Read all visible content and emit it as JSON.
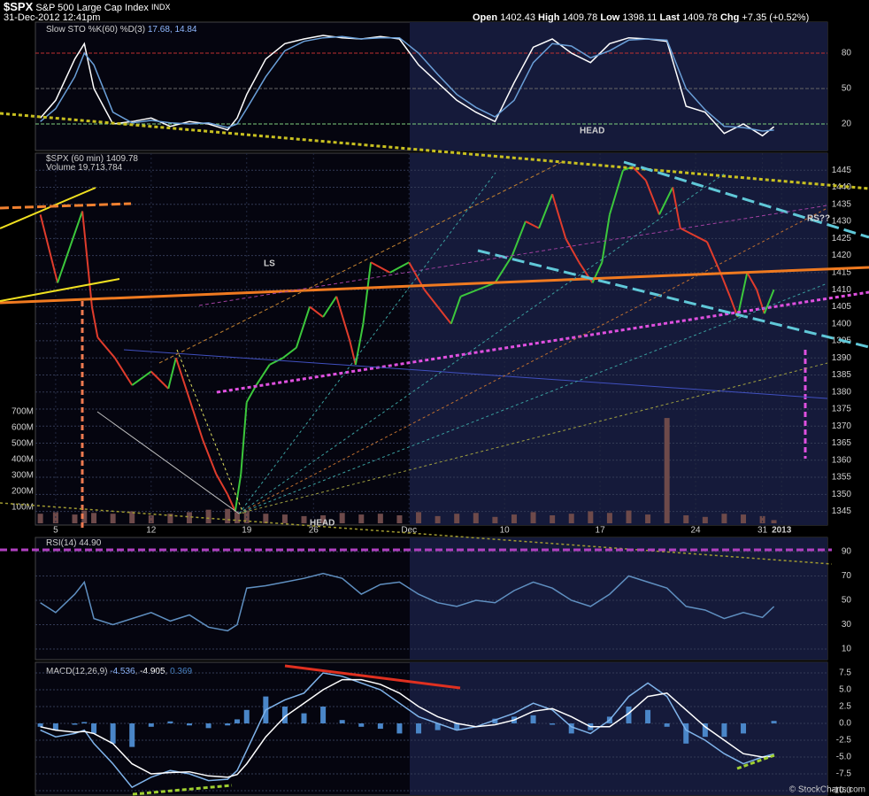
{
  "header": {
    "symbol": "$SPX",
    "name": "S&P 500 Large Cap Index",
    "exchange": "INDX",
    "datetime": "31-Dec-2012 12:41pm",
    "quote": [
      {
        "label": "Open",
        "value": "1402.43"
      },
      {
        "label": "High",
        "value": "1409.78"
      },
      {
        "label": "Low",
        "value": "1398.11"
      },
      {
        "label": "Last",
        "value": "1409.78"
      },
      {
        "label": "Chg",
        "value": "+7.35 (+0.52%)"
      }
    ],
    "copyright": "© StockCharts.com"
  },
  "chart_data": [
    {
      "type": "line",
      "title": "Slow STO %K(60) %D(3)",
      "values_label": "17.68, 14.84",
      "xlim": [
        -1.06,
        40.4
      ],
      "ylim": [
        -2.5,
        106.25
      ],
      "yticks": [
        20,
        50,
        80
      ],
      "grid_colors": [
        "#7fd07f",
        "#666666",
        "#c03030"
      ],
      "x": [
        -0.8,
        0,
        1,
        1.5,
        2,
        3,
        4,
        5,
        6,
        7,
        8,
        9,
        9.5,
        10,
        11,
        12,
        13,
        14,
        15,
        16,
        17,
        18,
        19,
        20,
        21,
        22,
        23,
        24,
        25,
        26,
        27,
        28,
        29,
        30,
        31,
        32,
        33,
        34,
        35,
        36,
        37,
        37.6
      ],
      "series": [
        {
          "color": "#ffffff",
          "values": [
            25,
            40,
            75,
            88,
            50,
            20,
            22,
            25,
            18,
            22,
            20,
            15,
            25,
            45,
            75,
            88,
            92,
            95,
            93,
            92,
            94,
            92,
            70,
            55,
            40,
            30,
            22,
            55,
            85,
            92,
            80,
            72,
            88,
            93,
            92,
            90,
            35,
            30,
            12,
            20,
            10,
            17.68
          ]
        },
        {
          "color": "#6a9fd8",
          "values": [
            22,
            33,
            60,
            80,
            70,
            30,
            21,
            23,
            21,
            20,
            21,
            17,
            20,
            33,
            60,
            82,
            90,
            93,
            94,
            92,
            93,
            93,
            80,
            62,
            45,
            34,
            26,
            40,
            72,
            88,
            86,
            76,
            82,
            91,
            92,
            91,
            50,
            32,
            18,
            17,
            14,
            14.84
          ]
        }
      ],
      "annotations": [
        {
          "text": "HEAD"
        }
      ]
    },
    {
      "type": "price",
      "title": "$SPX (60 min)",
      "title_value": "1409.78",
      "xlim": [
        -1.06,
        40.4
      ],
      "ylim": [
        1341,
        1450
      ],
      "yticks": [
        1345,
        1350,
        1355,
        1360,
        1365,
        1370,
        1375,
        1380,
        1385,
        1390,
        1395,
        1400,
        1405,
        1410,
        1415,
        1420,
        1425,
        1430,
        1435,
        1440,
        1445
      ],
      "xticks": [
        {
          "value": 0,
          "label": "5"
        },
        {
          "value": 5,
          "label": "12"
        },
        {
          "value": 10,
          "label": "19"
        },
        {
          "value": 13.5,
          "label": "26"
        },
        {
          "value": 18.5,
          "label": "Dec"
        },
        {
          "value": 23.5,
          "label": "10"
        },
        {
          "value": 28.5,
          "label": "17"
        },
        {
          "value": 33.5,
          "label": "24"
        },
        {
          "value": 37,
          "label": "31"
        },
        {
          "value": 38,
          "label": "2013"
        }
      ],
      "up_color": "#3cc83c",
      "down_color": "#e03c2c",
      "x": [
        -0.8,
        0.1,
        1.4,
        1.9,
        2.2,
        3.1,
        4.0,
        5.0,
        5.9,
        6.3,
        7.0,
        7.7,
        8.4,
        9.0,
        9.4,
        9.7,
        10.0,
        10.5,
        11.2,
        11.9,
        12.6,
        13.3,
        14.0,
        14.7,
        15.4,
        15.7,
        16.1,
        16.5,
        17.5,
        18.5,
        19.3,
        20.0,
        20.7,
        21.2,
        22.1,
        23.0,
        23.9,
        24.6,
        25.3,
        26.0,
        26.7,
        27.4,
        28.1,
        28.6,
        29.0,
        29.7,
        30.2,
        30.9,
        31.6,
        32.3,
        32.7,
        33.4,
        34.1,
        34.8,
        35.3,
        35.7,
        36.2,
        36.7,
        37.1,
        37.6
      ],
      "values": [
        1432,
        1412,
        1433,
        1405,
        1396,
        1390,
        1382,
        1386,
        1381,
        1390,
        1378,
        1366,
        1356,
        1350,
        1345,
        1356,
        1377,
        1382,
        1388,
        1390,
        1393,
        1405,
        1402,
        1408,
        1395,
        1388,
        1400,
        1418,
        1415,
        1418,
        1410,
        1405,
        1400,
        1408,
        1410,
        1412,
        1420,
        1430,
        1428,
        1438,
        1425,
        1418,
        1412,
        1418,
        1432,
        1445,
        1446,
        1442,
        1432,
        1440,
        1428,
        1426,
        1424,
        1415,
        1408,
        1402,
        1415,
        1410,
        1403,
        1410
      ],
      "volume": {
        "name": "Volume",
        "value_label": "19,713,784",
        "color": "#6e4a4a",
        "axis": "y2",
        "x": [
          -0.8,
          0,
          1,
          1.5,
          2,
          3,
          4,
          5,
          6,
          7,
          8,
          9,
          9.5,
          10,
          11,
          12,
          13,
          14,
          15,
          16,
          17,
          18,
          19,
          20,
          21,
          22,
          23,
          24,
          25,
          26,
          27,
          28,
          29,
          30,
          31,
          32,
          33,
          34,
          35,
          36,
          37,
          37.6
        ],
        "values": [
          60000000,
          70000000,
          55000000,
          80000000,
          65000000,
          60000000,
          75000000,
          50000000,
          60000000,
          70000000,
          85000000,
          90000000,
          70000000,
          80000000,
          60000000,
          55000000,
          45000000,
          50000000,
          65000000,
          55000000,
          60000000,
          50000000,
          70000000,
          45000000,
          60000000,
          65000000,
          40000000,
          55000000,
          70000000,
          50000000,
          60000000,
          75000000,
          65000000,
          80000000,
          55000000,
          660000000,
          50000000,
          40000000,
          60000000,
          55000000,
          45000000,
          20000000
        ]
      },
      "y2lim": [
        0,
        2320000000
      ],
      "y2ticks": [
        {
          "value": 100000000,
          "label": "100M"
        },
        {
          "value": 200000000,
          "label": "200M"
        },
        {
          "value": 300000000,
          "label": "300M"
        },
        {
          "value": 400000000,
          "label": "400M"
        },
        {
          "value": 500000000,
          "label": "500M"
        },
        {
          "value": 600000000,
          "label": "600M"
        },
        {
          "value": 700000000,
          "label": "700M"
        }
      ],
      "annotations": [
        {
          "text": "LS"
        },
        {
          "text": "HEAD"
        },
        {
          "text": "RS??"
        }
      ]
    },
    {
      "type": "line",
      "title": "RSI(14)",
      "values_label": "44.90",
      "xlim": [
        -1.06,
        40.4
      ],
      "ylim": [
        1.3,
        101.6
      ],
      "yticks": [
        10,
        30,
        50,
        70,
        90
      ],
      "x": [
        -0.8,
        0,
        1,
        1.5,
        2,
        3,
        4,
        5,
        6,
        7,
        8,
        9,
        9.5,
        10,
        11,
        12,
        13,
        14,
        15,
        16,
        17,
        18,
        19,
        20,
        21,
        22,
        23,
        24,
        25,
        26,
        27,
        28,
        29,
        30,
        31,
        32,
        33,
        34,
        35,
        36,
        37,
        37.6
      ],
      "series": [
        {
          "color": "#5f8fc0",
          "values": [
            48,
            40,
            55,
            65,
            35,
            30,
            35,
            40,
            33,
            38,
            28,
            25,
            30,
            60,
            62,
            65,
            68,
            72,
            68,
            55,
            63,
            65,
            55,
            48,
            45,
            50,
            48,
            58,
            65,
            60,
            50,
            45,
            55,
            70,
            65,
            60,
            45,
            42,
            35,
            40,
            36,
            44.9
          ]
        }
      ]
    },
    {
      "type": "macd",
      "title": "MACD(12,26,9)",
      "values_labels": [
        "-4.536",
        "-4.905",
        "0.369"
      ],
      "xlim": [
        -1.06,
        40.4
      ],
      "ylim": [
        -10.66,
        9.08
      ],
      "yticks": [
        7.5,
        {
          "value": 5,
          "label": "5.0"
        },
        2.5,
        {
          "value": 0,
          "label": "0.0"
        },
        -2.5,
        {
          "value": -5,
          "label": "-5.0"
        },
        -7.5,
        {
          "value": -10,
          "label": "-10.0"
        }
      ],
      "x": [
        -0.8,
        0,
        1,
        1.5,
        2,
        3,
        4,
        5,
        6,
        7,
        8,
        9,
        9.5,
        10,
        11,
        12,
        13,
        14,
        15,
        16,
        17,
        18,
        19,
        20,
        21,
        22,
        23,
        24,
        25,
        26,
        27,
        28,
        29,
        30,
        31,
        32,
        33,
        34,
        35,
        36,
        37,
        37.6
      ],
      "series": [
        {
          "color": "#7fb3ea",
          "values": [
            -1,
            -2,
            -1.5,
            -1,
            -3,
            -6,
            -9.5,
            -8,
            -7,
            -7.5,
            -8.5,
            -8.3,
            -7,
            -4,
            2,
            3.5,
            4.5,
            7.5,
            7,
            6,
            5,
            3,
            1,
            0,
            -1,
            -0.5,
            0.5,
            1.5,
            3,
            2,
            -0.5,
            -1.5,
            0.5,
            4,
            6,
            4,
            -1,
            -2.5,
            -4.5,
            -6,
            -5,
            -4.536
          ]
        },
        {
          "color": "#ffffff",
          "values": [
            -0.5,
            -1,
            -1.3,
            -1.2,
            -1.5,
            -3,
            -6,
            -7.5,
            -7.3,
            -7.2,
            -7.8,
            -8,
            -7.6,
            -6,
            -2,
            1,
            3,
            5,
            6.5,
            6.5,
            5.8,
            4.5,
            2.5,
            1,
            0,
            -0.5,
            -0.2,
            0.5,
            1.8,
            2.2,
            1,
            -0.5,
            -0.5,
            1.5,
            4,
            4.5,
            2,
            -0.5,
            -2.5,
            -4.5,
            -5,
            -4.905
          ]
        },
        {
          "type": "histogram",
          "color": "#4a86c8",
          "values": [
            -0.5,
            -1,
            -0.2,
            0.2,
            -1.5,
            -3,
            -3.5,
            -0.5,
            0.3,
            -0.3,
            -0.7,
            -0.3,
            0.6,
            2,
            4,
            2.5,
            1.5,
            2.5,
            0.5,
            -0.5,
            -0.8,
            -1.5,
            -1.5,
            -1,
            -1,
            0,
            0.7,
            1,
            1.2,
            -0.2,
            -1.5,
            -1,
            1,
            2.5,
            2,
            -0.5,
            -3,
            -2,
            -2,
            -1.5,
            0,
            0.369
          ]
        }
      ]
    }
  ]
}
